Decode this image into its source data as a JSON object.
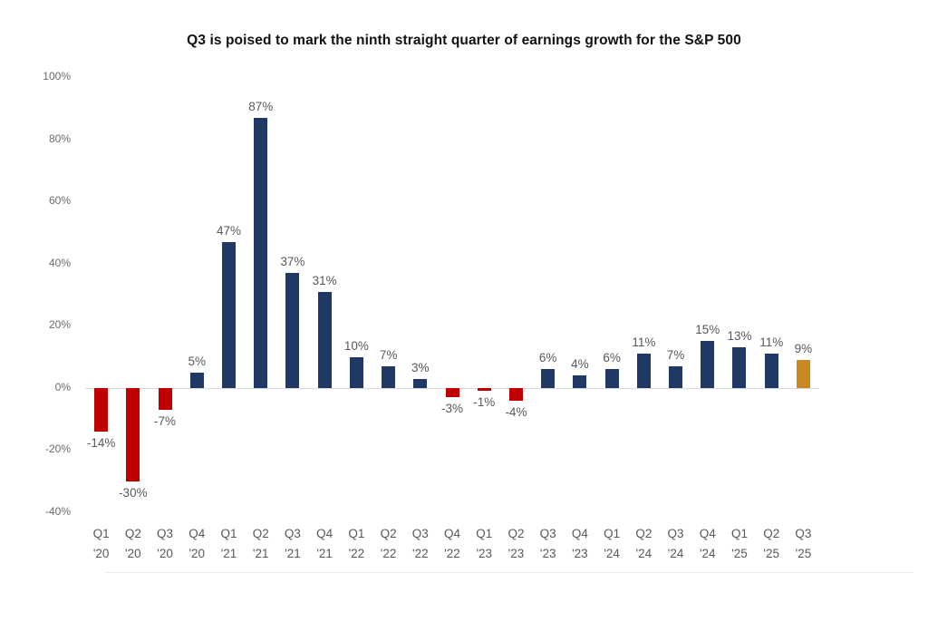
{
  "title": "Q3 is poised to mark the ninth straight quarter of earnings growth for the S&P 500",
  "chart_data": {
    "type": "bar",
    "title": "Q3 is poised to mark the ninth straight quarter of earnings growth for the S&P 500",
    "categories": [
      "Q1 '20",
      "Q2 '20",
      "Q3 '20",
      "Q4 '20",
      "Q1 '21",
      "Q2 '21",
      "Q3 '21",
      "Q4 '21",
      "Q1 '22",
      "Q2 '22",
      "Q3 '22",
      "Q4 '22",
      "Q1 '23",
      "Q2 '23",
      "Q3 '23",
      "Q4 '23",
      "Q1 '24",
      "Q2 '24",
      "Q3 '24",
      "Q4 '24",
      "Q1 '25",
      "Q2 '25",
      "Q3 '25"
    ],
    "values": [
      -14,
      -30,
      -7,
      5,
      47,
      87,
      37,
      31,
      10,
      7,
      3,
      -3,
      -1,
      -4,
      6,
      4,
      6,
      11,
      7,
      15,
      13,
      11,
      9
    ],
    "data_labels": [
      "-14%",
      "-30%",
      "-7%",
      "5%",
      "47%",
      "87%",
      "37%",
      "31%",
      "10%",
      "7%",
      "3%",
      "-3%",
      "-1%",
      "-4%",
      "6%",
      "4%",
      "6%",
      "11%",
      "7%",
      "15%",
      "13%",
      "11%",
      "9%"
    ],
    "xlabel": "",
    "ylabel": "",
    "ylim": [
      -40,
      100
    ],
    "y_ticks": [
      "100%",
      "80%",
      "60%",
      "40%",
      "20%",
      "0%",
      "-20%",
      "-40%"
    ],
    "y_tick_values": [
      100,
      80,
      60,
      40,
      20,
      0,
      -20,
      -40
    ],
    "grid": false,
    "legend": null,
    "highlight_index": 22,
    "colors": {
      "positive": "#1f3864",
      "negative": "#c00000",
      "highlight": "#c9871d",
      "axis_text": "#595959",
      "zero_line": "#d9d9d9"
    }
  }
}
